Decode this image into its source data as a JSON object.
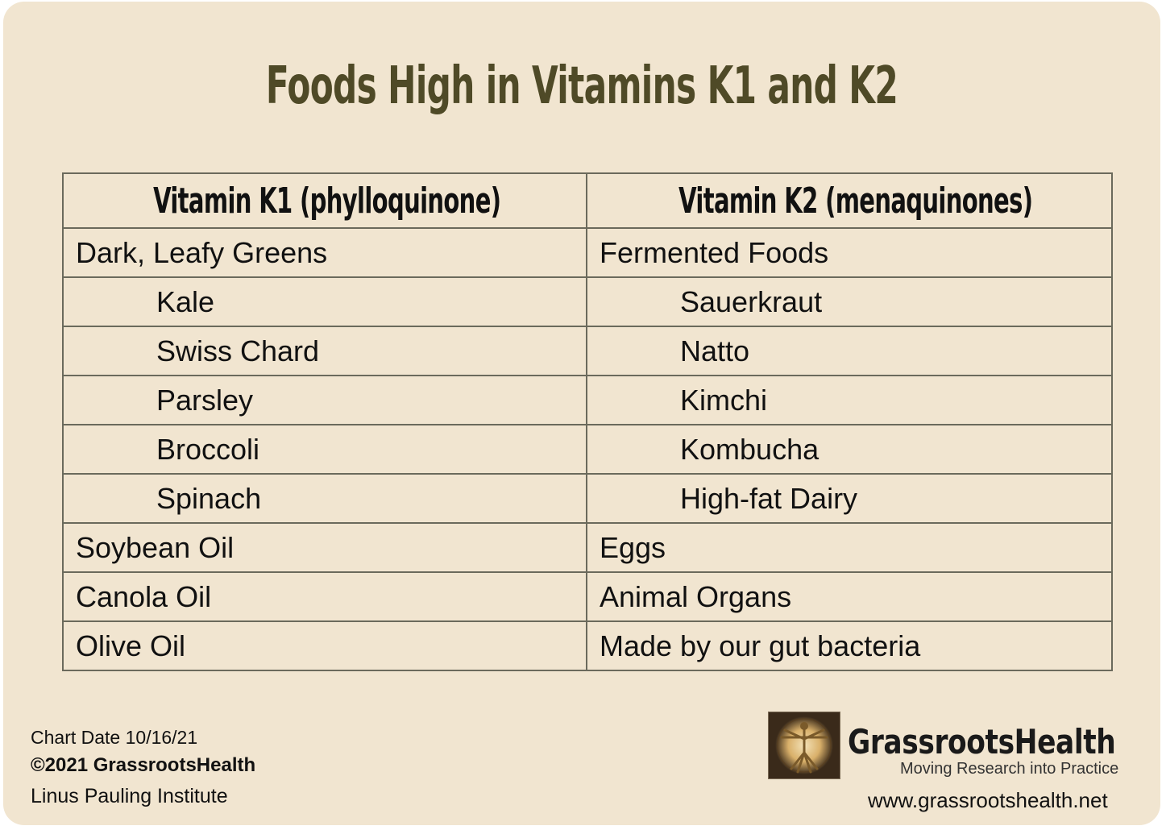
{
  "title": "Foods High in Vitamins K1 and K2",
  "table": {
    "headers": [
      "Vitamin K1 (phylloquinone)",
      "Vitamin K2 (menaquinones)"
    ],
    "rows": [
      {
        "k1": "Dark, Leafy Greens",
        "k2": "Fermented Foods",
        "indent": false
      },
      {
        "k1": "Kale",
        "k2": "Sauerkraut",
        "indent": true
      },
      {
        "k1": "Swiss Chard",
        "k2": "Natto",
        "indent": true
      },
      {
        "k1": "Parsley",
        "k2": "Kimchi",
        "indent": true
      },
      {
        "k1": "Broccoli",
        "k2": "Kombucha",
        "indent": true
      },
      {
        "k1": "Spinach",
        "k2": "High-fat Dairy",
        "indent": true
      },
      {
        "k1": "Soybean Oil",
        "k2": "Eggs",
        "indent": false
      },
      {
        "k1": "Canola Oil",
        "k2": "Animal Organs",
        "indent": false
      },
      {
        "k1": "Olive Oil",
        "k2": "Made by our gut bacteria",
        "indent": false
      }
    ]
  },
  "footer": {
    "chart_date": "Chart Date 10/16/21",
    "copyright": "©2021 GrassrootsHealth",
    "source": "Linus Pauling Institute"
  },
  "brand": {
    "name": "GrassrootsHealth",
    "tagline": "Moving Research into Practice",
    "website": "www.grassrootshealth.net",
    "logo_icon": "vitruvian-man-icon"
  },
  "colors": {
    "background": "#f1e5d0",
    "title": "#4f4a27",
    "border": "#6b6a5c"
  }
}
